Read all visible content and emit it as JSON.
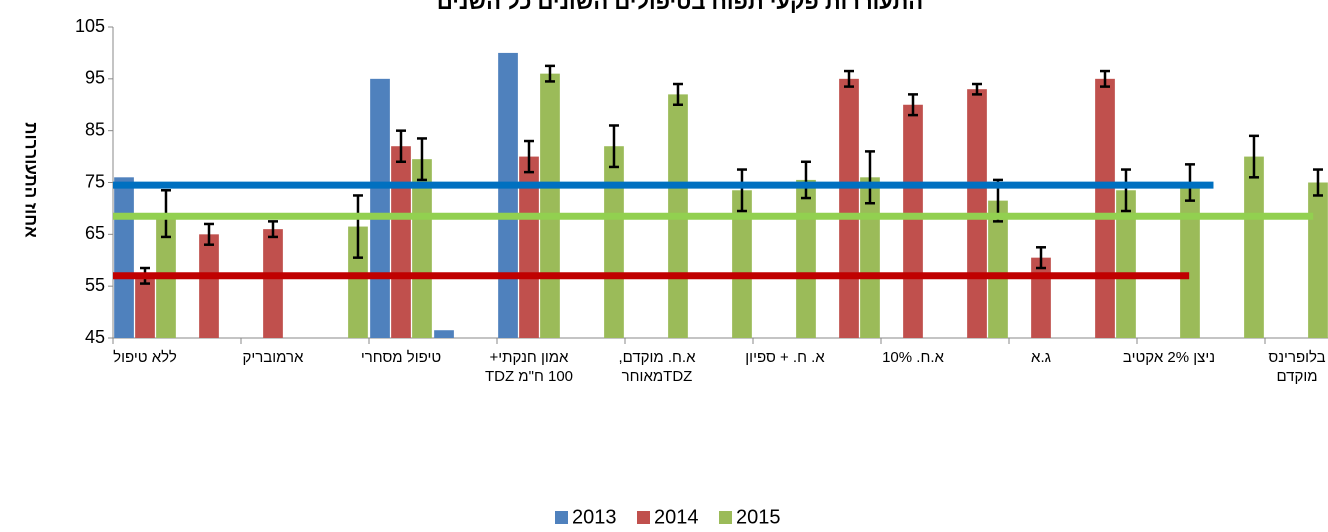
{
  "chart_data": {
    "type": "bar",
    "title": "התעוררות פקעי תפוח בטיפולים השונים כל השנים",
    "y_label": "אחוז התעוררות",
    "categories": [
      "ללא טיפול",
      null,
      "ארמובריק",
      null,
      "טיפול מסחרי",
      null,
      "אמון חנקתי+\n100 ח\"מ TDZ",
      null,
      "א.ח. מוקדם,\nTDZמאוחר",
      null,
      "א. ח. + ספיון",
      null,
      "א.ח. 10%",
      null,
      "ג.א",
      null,
      "ניצן 2% אקטיב",
      null,
      "בלופרינס\nמוקדם"
    ],
    "series": [
      {
        "name": "2013",
        "color": "#4f81bd",
        "values": [
          76,
          null,
          null,
          null,
          95,
          46.5,
          100,
          null,
          null,
          null,
          null,
          null,
          null,
          null,
          null,
          null,
          null,
          null,
          null
        ]
      },
      {
        "name": "2014",
        "color": "#c0504d",
        "values": [
          57,
          65,
          66,
          null,
          82,
          null,
          80,
          null,
          null,
          null,
          null,
          95,
          90,
          93,
          60.5,
          95,
          null,
          null,
          null
        ],
        "errors": [
          1.5,
          2,
          1.5,
          null,
          3,
          null,
          3,
          null,
          null,
          null,
          null,
          1.5,
          2,
          1,
          2,
          1.5,
          null,
          null,
          null
        ]
      },
      {
        "name": "2015",
        "color": "#9bbb59",
        "values": [
          69,
          null,
          null,
          66.5,
          79.5,
          null,
          96,
          82,
          92,
          73.5,
          75.5,
          76,
          null,
          71.5,
          null,
          73.5,
          75,
          80,
          75
        ],
        "errors": [
          4.5,
          null,
          null,
          6,
          4,
          null,
          1.5,
          4,
          2,
          4,
          3.5,
          5,
          null,
          4,
          null,
          4,
          3.5,
          4,
          2.5
        ]
      }
    ],
    "reference_lines": [
      {
        "color": "#0070c0",
        "value": 74.5
      },
      {
        "color": "#92d050",
        "value": 68.5
      },
      {
        "color": "#c00000",
        "value": 57
      }
    ],
    "ylim": [
      45,
      105
    ],
    "yticks": [
      45,
      55,
      65,
      75,
      85,
      95,
      105
    ],
    "legend": "bottom"
  }
}
